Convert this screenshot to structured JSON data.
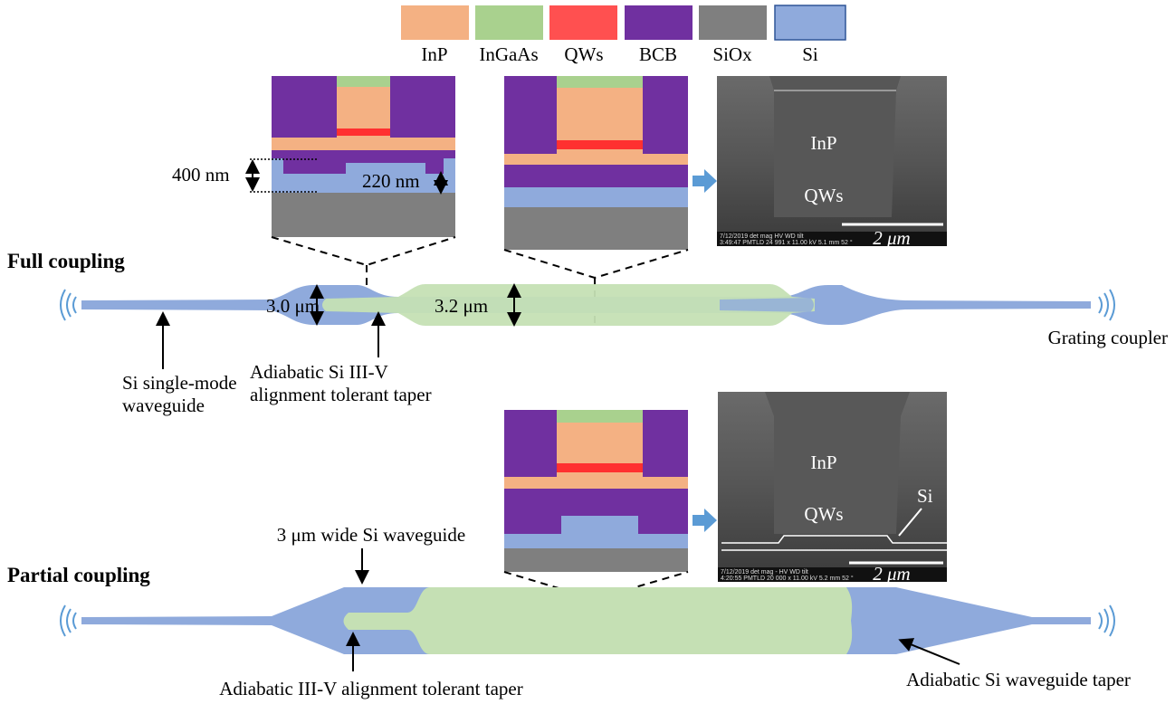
{
  "legend": [
    "InP",
    "InGaAs",
    "QWs",
    "BCB",
    "SiOx",
    "Si"
  ],
  "full_coupling": {
    "title": "Full coupling",
    "cross_section": {
      "thickness_label": "400 nm",
      "rib_label": "220 nm"
    },
    "sem": {
      "labels": [
        "InP",
        "QWs"
      ],
      "scale": "2 μm",
      "footer": [
        "7/12/2019  det  mag      HV    WD   tilt",
        "3:49:47 PMTLD 24 991 x 11.00 kV 5.1 mm 52 °"
      ]
    },
    "widths": [
      "3.0 μm",
      "3.2 μm"
    ],
    "annotations": {
      "left": [
        "Si single-mode",
        "waveguide"
      ],
      "taper": [
        "Adiabatic Si III-V",
        "alignment tolerant taper"
      ],
      "right": "Grating coupler"
    }
  },
  "partial_coupling": {
    "title": "Partial coupling",
    "sem": {
      "labels": [
        "InP",
        "QWs",
        "Si"
      ],
      "scale": "2 μm",
      "footer": [
        "7/12/2019  det  mag  -    HV    WD   tilt",
        "4:20:55 PMTLD 20 000 x 11.00 kV 5.2 mm 52 °"
      ]
    },
    "annotations": {
      "top": "3 μm wide Si waveguide",
      "bottom": "Adiabatic III-V alignment tolerant taper",
      "right": "Adiabatic Si waveguide taper"
    }
  }
}
